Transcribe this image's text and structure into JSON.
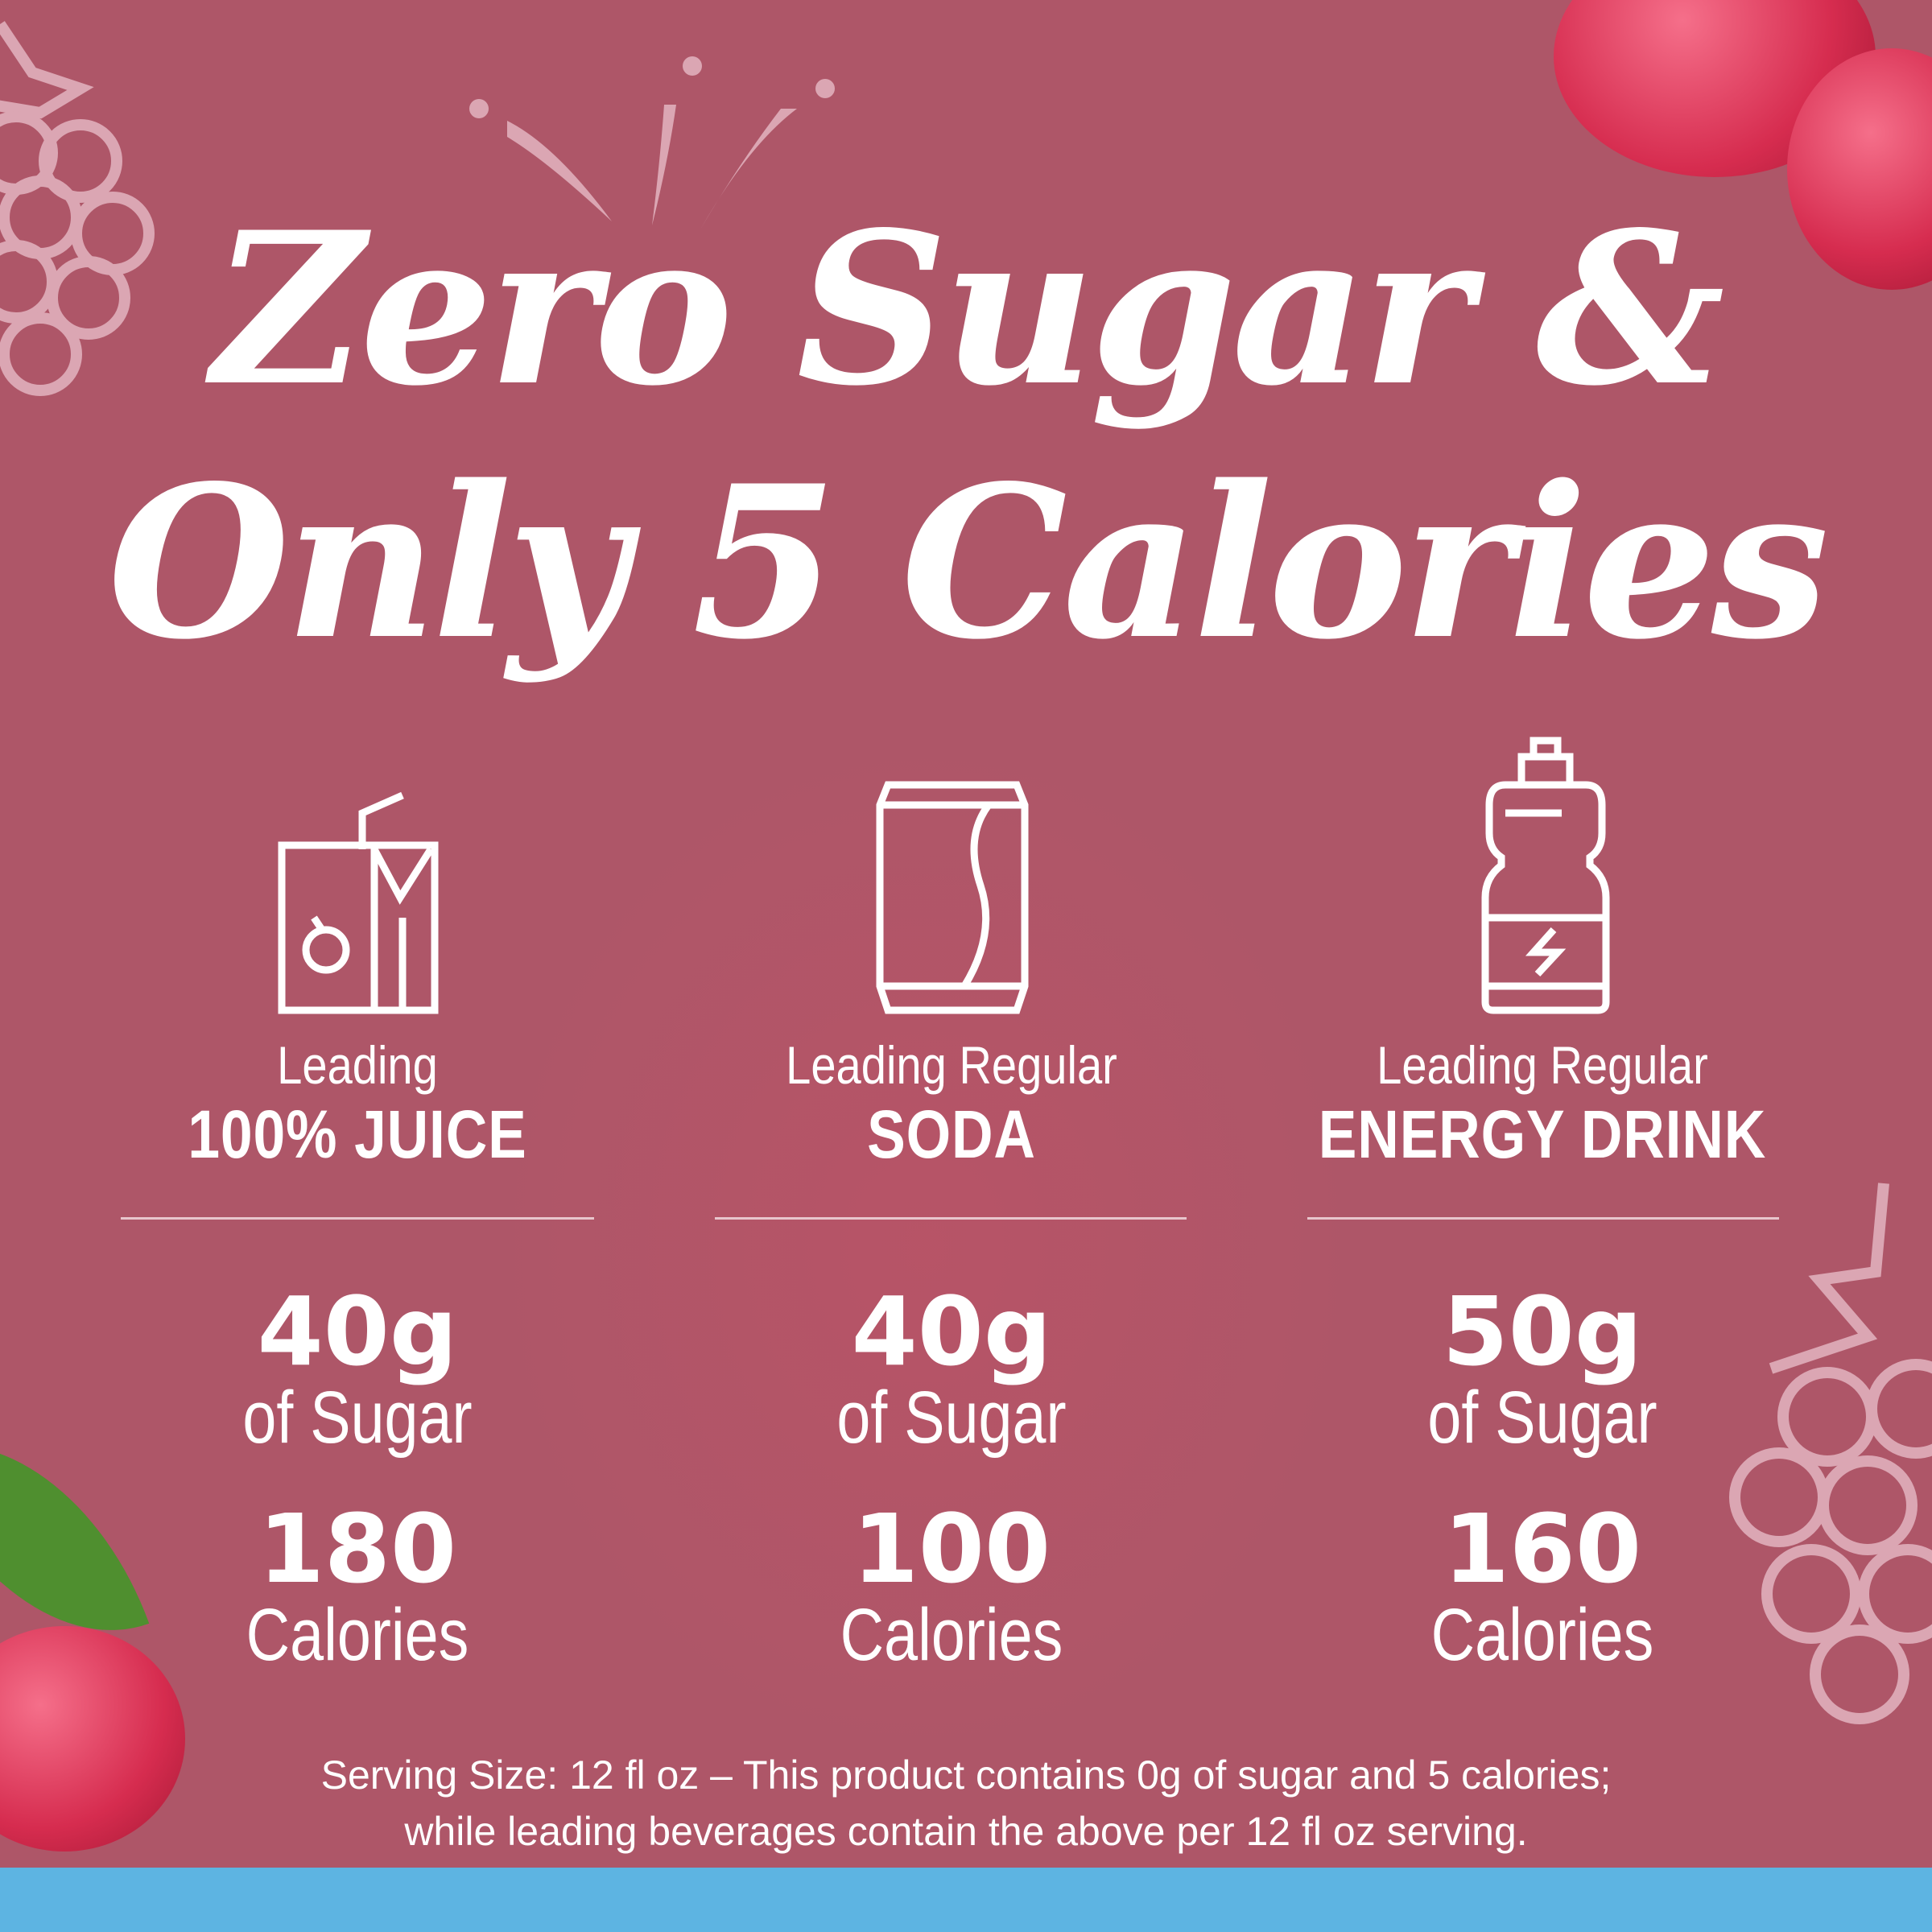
{
  "headline": {
    "line1": "Zero Sugar &",
    "line2": "Only 5 Calories"
  },
  "columns": [
    {
      "icon": "juice-box-icon",
      "lead": "Leading",
      "kind": "100% JUICE",
      "sugar": "40g",
      "sugar_label": "of Sugar",
      "calories": "180",
      "calories_label": "Calories"
    },
    {
      "icon": "soda-can-icon",
      "lead": "Leading Regular",
      "kind": "SODA",
      "sugar": "40g",
      "sugar_label": "of Sugar",
      "calories": "100",
      "calories_label": "Calories"
    },
    {
      "icon": "energy-drink-bottle-icon",
      "lead": "Leading Regular",
      "kind": "ENERGY DRINK",
      "sugar": "50g",
      "sugar_label": "of Sugar",
      "calories": "160",
      "calories_label": "Calories"
    }
  ],
  "footnote": {
    "line1": "Serving Size: 12 fl oz – This product contains 0g of sugar and 5 calories;",
    "line2": "while leading beverages contain the above per 12 fl oz serving."
  },
  "colors": {
    "background": "#ae5668",
    "band": "#5db4e2",
    "text": "#ffffff"
  }
}
